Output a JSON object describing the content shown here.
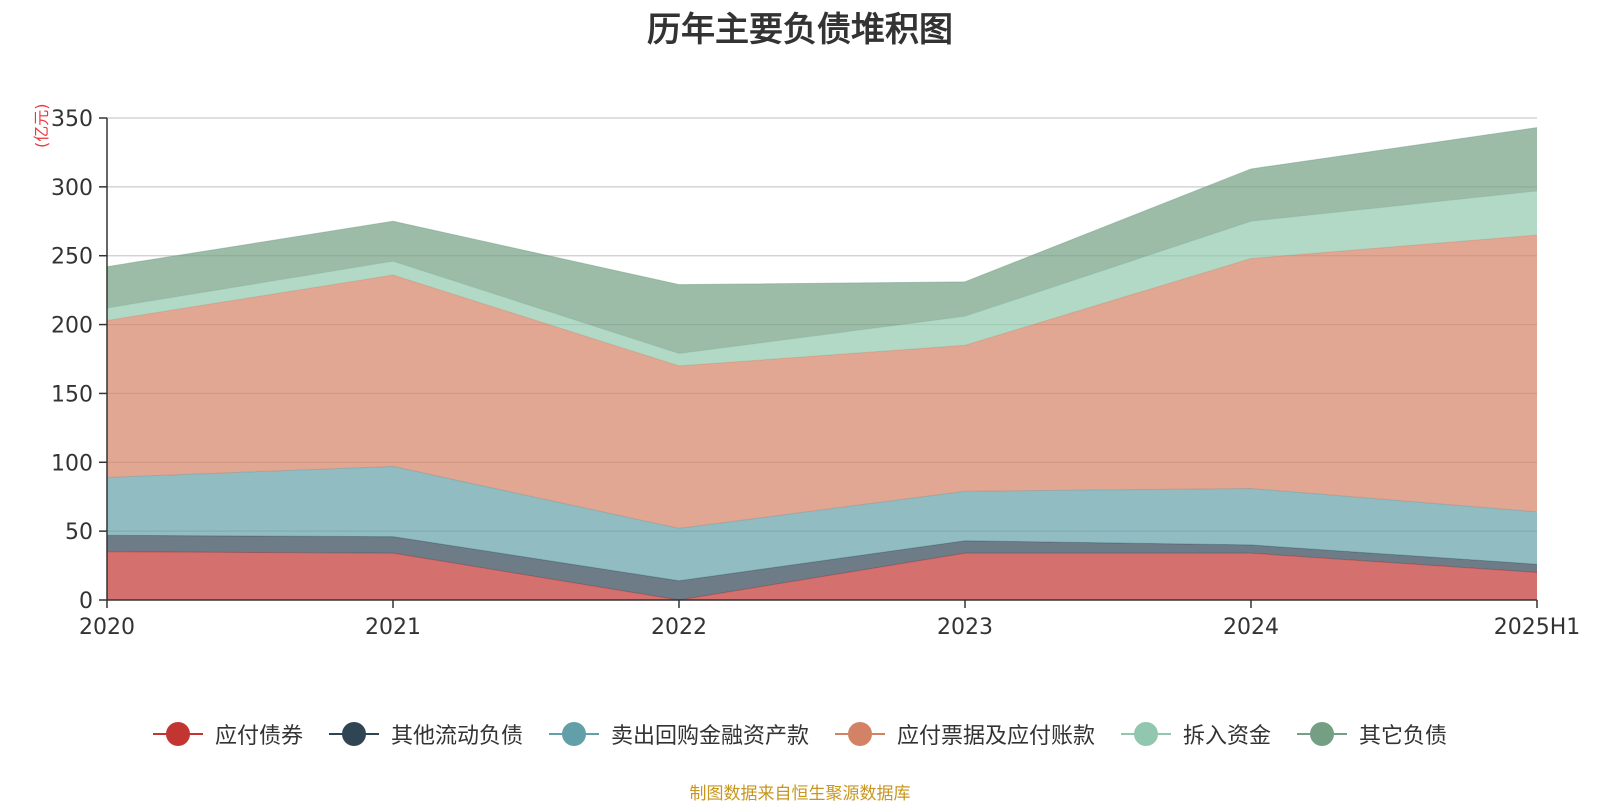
{
  "chart_data": {
    "type": "area",
    "stacked": true,
    "title": "历年主要负债堆积图",
    "unit_label": "(亿元)",
    "categories": [
      "2020",
      "2021",
      "2022",
      "2023",
      "2024",
      "2025H1"
    ],
    "ylim": [
      0,
      350
    ],
    "yticks": [
      0,
      50,
      100,
      150,
      200,
      250,
      300,
      350
    ],
    "grid": true,
    "legend_position": "bottom",
    "series": [
      {
        "name": "应付债券",
        "color": "#c23531",
        "values": [
          35,
          34,
          0,
          34,
          34,
          20
        ]
      },
      {
        "name": "其他流动负债",
        "color": "#2f4554",
        "values": [
          12,
          12,
          14,
          9,
          6,
          6
        ]
      },
      {
        "name": "卖出回购金融资产款",
        "color": "#61a0a8",
        "values": [
          42,
          51,
          38,
          36,
          41,
          38
        ]
      },
      {
        "name": "应付票据及应付账款",
        "color": "#d48265",
        "values": [
          114,
          139,
          118,
          106,
          167,
          201
        ]
      },
      {
        "name": "拆入资金",
        "color": "#91c7ae",
        "values": [
          9,
          10,
          9,
          21,
          27,
          32
        ]
      },
      {
        "name": "其它负债",
        "color": "#749f83",
        "values": [
          30,
          29,
          50,
          25,
          38,
          46
        ]
      }
    ]
  },
  "source_note": "制图数据来自恒生聚源数据库"
}
